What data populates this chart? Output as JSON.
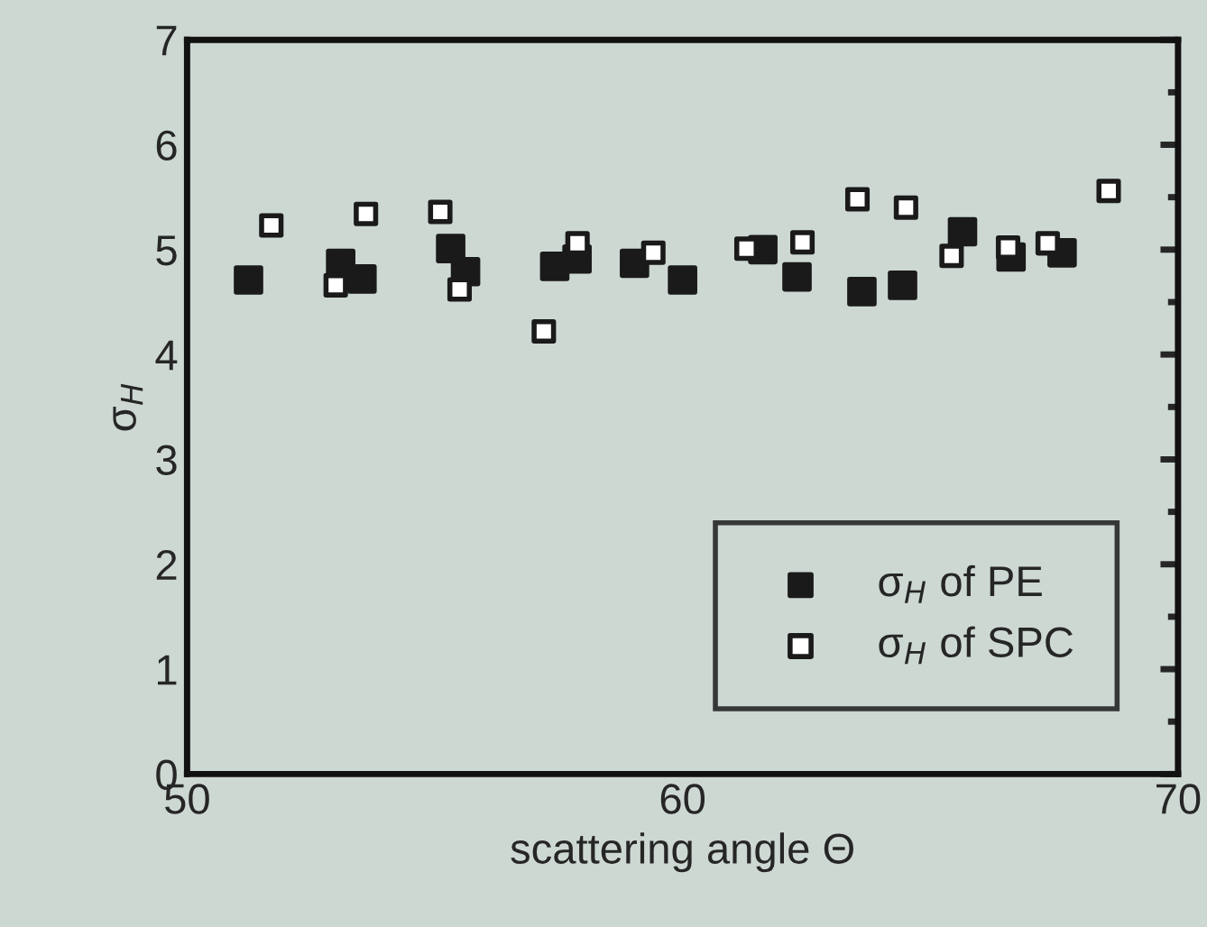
{
  "chart_data": {
    "type": "scatter",
    "xlabel": "scattering angle Θ",
    "ylabel": "σ$_{H}$",
    "xlim": [
      50,
      70
    ],
    "xticks": [
      50,
      60,
      70
    ],
    "ylim": [
      0,
      7
    ],
    "yticks": [
      0,
      1,
      2,
      3,
      4,
      5,
      6,
      7
    ],
    "grid": false,
    "legend": "bottom right",
    "marker": "square",
    "series": [
      {
        "name": "σ$_{H}$ of PE",
        "color": "#1a1a1a",
        "x": [
          51.24,
          53.1,
          53.53,
          55.32,
          55.62,
          57.42,
          57.87,
          59.03,
          60.0,
          61.62,
          62.31,
          63.62,
          64.44,
          65.65,
          66.63,
          67.66
        ],
        "values": [
          4.71,
          4.87,
          4.72,
          5.01,
          4.79,
          4.84,
          4.91,
          4.87,
          4.71,
          5.0,
          4.74,
          4.6,
          4.66,
          5.17,
          4.93,
          4.97
        ]
      },
      {
        "name": "σ$_{H}$ of SPC",
        "color": "#1a1a1a",
        "x": [
          51.7,
          53.0,
          53.61,
          55.11,
          55.5,
          57.2,
          57.88,
          59.41,
          61.29,
          62.42,
          63.53,
          64.51,
          65.43,
          66.57,
          67.37,
          68.6
        ],
        "values": [
          5.23,
          4.66,
          5.34,
          5.36,
          4.62,
          4.22,
          5.06,
          4.97,
          5.01,
          5.07,
          5.48,
          5.4,
          4.94,
          5.02,
          5.06,
          5.56
        ]
      }
    ]
  }
}
